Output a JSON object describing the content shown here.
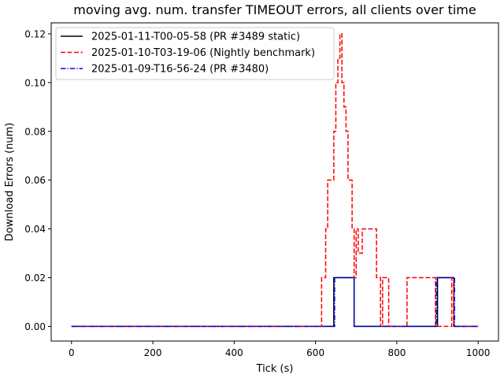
{
  "chart_data": {
    "type": "line",
    "title": "moving avg. num. transfer TIMEOUT errors, all clients over time",
    "xlabel": "Tick (s)",
    "ylabel": "Download Errors (num)",
    "xlim": [
      -50,
      1050
    ],
    "ylim": [
      -0.006,
      0.1245
    ],
    "xticks": [
      0,
      200,
      400,
      600,
      800,
      1000
    ],
    "xtick_labels": [
      "0",
      "200",
      "400",
      "600",
      "800",
      "1000"
    ],
    "yticks": [
      0.0,
      0.02,
      0.04,
      0.06,
      0.08,
      0.1,
      0.12
    ],
    "ytick_labels": [
      "0.00",
      "0.02",
      "0.04",
      "0.06",
      "0.08",
      "0.10",
      "0.12"
    ],
    "grid": false,
    "legend_position": "upper-left",
    "series": [
      {
        "name": "2025-01-11-T00-05-58 (PR #3489 static)",
        "color": "#000000",
        "line_style": "solid",
        "x": [
          0,
          645,
          645,
          695,
          695,
          900,
          900,
          940,
          940,
          1000
        ],
        "y": [
          0,
          0,
          0.02,
          0.02,
          0,
          0,
          0.02,
          0.02,
          0,
          0
        ]
      },
      {
        "name": "2025-01-10-T03-19-06 (Nightly benchmark)",
        "color": "#ff0000",
        "line_style": "dashed",
        "x": [
          0,
          615,
          615,
          625,
          625,
          630,
          630,
          645,
          645,
          650,
          650,
          655,
          655,
          660,
          660,
          665,
          665,
          670,
          670,
          675,
          675,
          680,
          680,
          690,
          690,
          695,
          695,
          700,
          700,
          705,
          705,
          715,
          715,
          750,
          750,
          760,
          760,
          765,
          765,
          775,
          775,
          780,
          780,
          825,
          825,
          895,
          895,
          935,
          935,
          940,
          940,
          985,
          985,
          1000
        ],
        "y": [
          0,
          0,
          0.02,
          0.02,
          0.04,
          0.04,
          0.06,
          0.06,
          0.08,
          0.08,
          0.1,
          0.1,
          0.11,
          0.11,
          0.12,
          0.12,
          0.1,
          0.1,
          0.09,
          0.09,
          0.08,
          0.08,
          0.06,
          0.06,
          0.04,
          0.04,
          0.02,
          0.02,
          0.04,
          0.04,
          0.03,
          0.03,
          0.04,
          0.04,
          0.02,
          0.02,
          0,
          0,
          0.02,
          0.02,
          0.02,
          0.02,
          0,
          0,
          0.02,
          0.02,
          0,
          0,
          0.02,
          0.02,
          0,
          0,
          0,
          0
        ]
      },
      {
        "name": "2025-01-09-T16-56-24 (PR #3480)",
        "color": "#0000ff",
        "line_style": "dashdot",
        "x": [
          0,
          647,
          647,
          695,
          695,
          897,
          897,
          942,
          942,
          1000
        ],
        "y": [
          0,
          0,
          0.02,
          0.02,
          0,
          0,
          0.02,
          0.02,
          0,
          0
        ]
      }
    ]
  }
}
